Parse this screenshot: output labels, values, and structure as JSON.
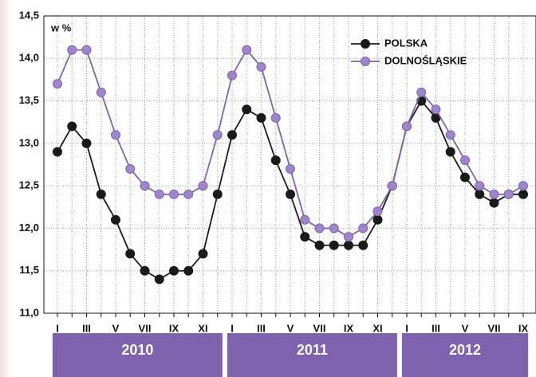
{
  "chart_data": {
    "type": "line",
    "y_label": "w %",
    "categories": [
      "I",
      null,
      "III",
      null,
      "V",
      null,
      "VII",
      null,
      "IX",
      null,
      "XI",
      null,
      "I",
      null,
      "III",
      null,
      "V",
      null,
      "VII",
      null,
      "IX",
      null,
      "XI",
      null,
      "I",
      null,
      "III",
      null,
      "V",
      null,
      "VII",
      null,
      "IX"
    ],
    "x_groups": [
      "2010",
      "2011",
      "2012"
    ],
    "series": [
      {
        "name": "POLSKA",
        "color": "#1a1a1a",
        "marker_color": "#1a1a1a",
        "values": [
          12.9,
          13.2,
          13.0,
          12.4,
          12.1,
          11.7,
          11.5,
          11.4,
          11.5,
          11.5,
          11.7,
          12.4,
          13.1,
          13.4,
          13.3,
          12.8,
          12.4,
          11.9,
          11.8,
          11.8,
          11.8,
          11.8,
          12.1,
          12.5,
          13.2,
          13.5,
          13.3,
          12.9,
          12.6,
          12.4,
          12.3,
          12.4,
          12.4
        ]
      },
      {
        "name": "DOLNOŚLĄSKIE",
        "color": "#7f62ad",
        "marker_color": "#9f86cc",
        "values": [
          13.7,
          14.1,
          14.1,
          13.6,
          13.1,
          12.7,
          12.5,
          12.4,
          12.4,
          12.4,
          12.5,
          13.1,
          13.8,
          14.1,
          13.9,
          13.3,
          12.7,
          12.1,
          12.0,
          12.0,
          11.9,
          12.0,
          12.2,
          12.5,
          13.2,
          13.6,
          13.4,
          13.1,
          12.8,
          12.5,
          12.4,
          12.4,
          12.5
        ]
      }
    ],
    "ylim": [
      11.0,
      14.5
    ],
    "yticks": [
      {
        "value": 11.0,
        "label": "11,0"
      },
      {
        "value": 11.5,
        "label": "11,5"
      },
      {
        "value": 12.0,
        "label": "12,0"
      },
      {
        "value": 12.5,
        "label": "12,5"
      },
      {
        "value": 13.0,
        "label": "13,0"
      },
      {
        "value": 13.5,
        "label": "13,5"
      },
      {
        "value": 14.0,
        "label": "14,0"
      },
      {
        "value": 14.5,
        "label": "14,5"
      }
    ],
    "grid": true,
    "group_color": "#7f62ad"
  }
}
